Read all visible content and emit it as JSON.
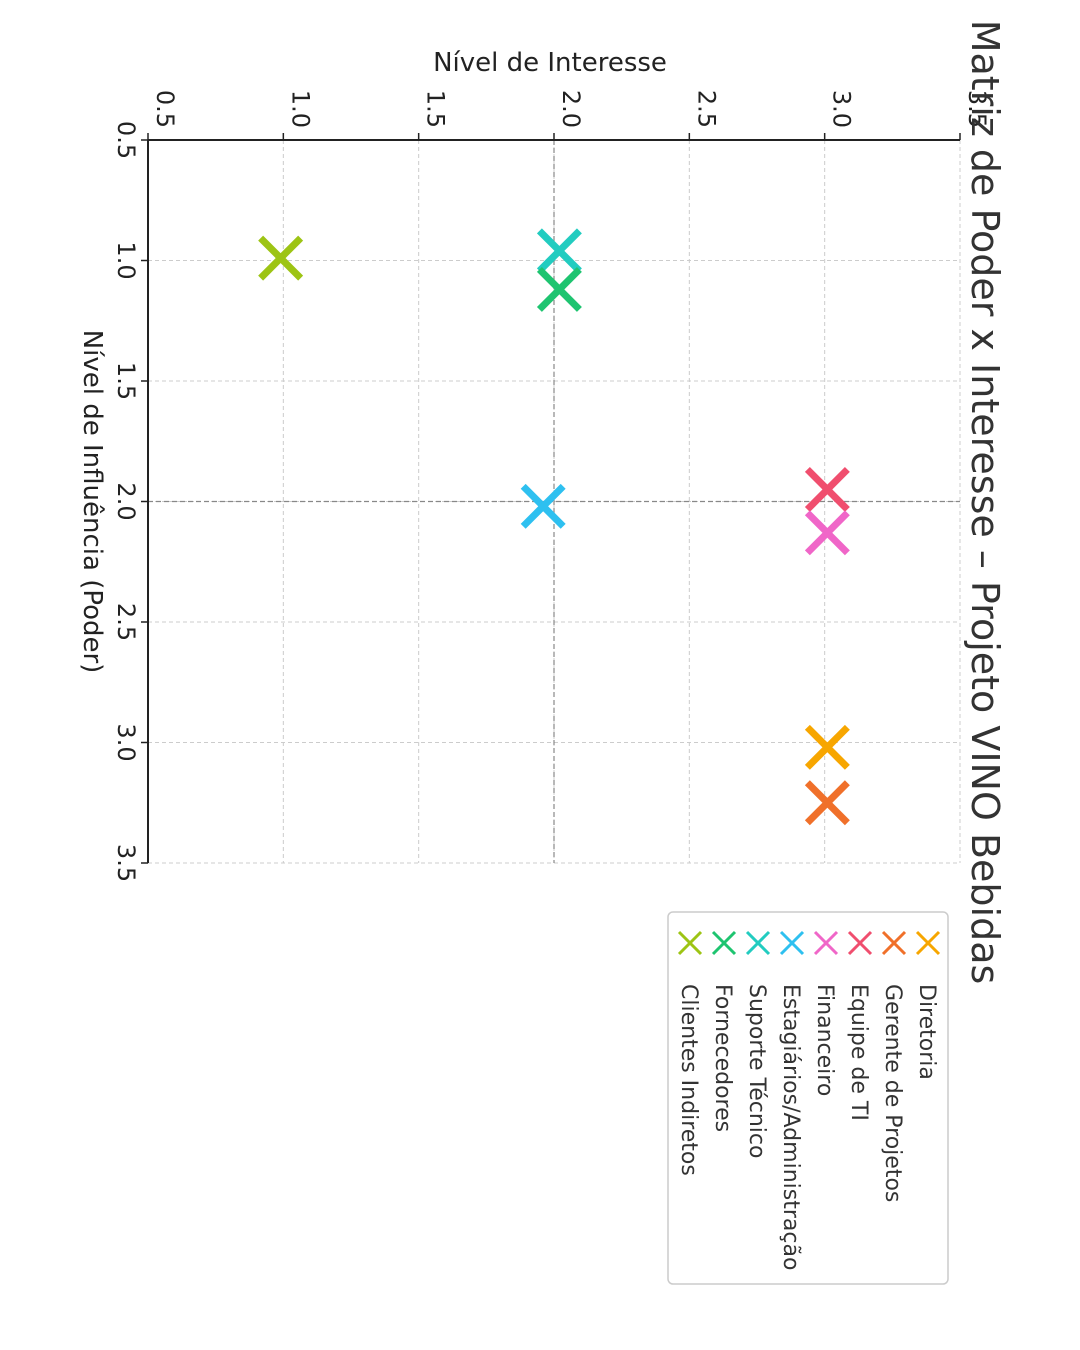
{
  "chart_data": {
    "type": "scatter",
    "orientation": "rotated 90 degrees clockwise",
    "title": "Matriz de Poder x Interesse – Projeto VINO Bebidas",
    "xlabel": "Nível de Influência (Poder)",
    "ylabel": "Nível de Interesse",
    "xlim": [
      0.5,
      3.5
    ],
    "ylim": [
      0.5,
      3.5
    ],
    "xticks": [
      "0.5",
      "1.0",
      "1.5",
      "2.0",
      "2.5",
      "3.0",
      "3.5"
    ],
    "yticks": [
      "0.5",
      "1.0",
      "1.5",
      "2.0",
      "2.5",
      "3.0",
      "3.5"
    ],
    "grid": true,
    "marker": "x",
    "legend_position": "right",
    "series": [
      {
        "name": "Diretoria",
        "color": "#f7a600",
        "x": 3.02,
        "y": 3.01
      },
      {
        "name": "Gerente de Projetos",
        "color": "#f0702a",
        "x": 3.25,
        "y": 3.01
      },
      {
        "name": "Equipe de TI",
        "color": "#f04e6e",
        "x": 1.95,
        "y": 3.01
      },
      {
        "name": "Financeiro",
        "color": "#f066c8",
        "x": 2.13,
        "y": 3.01
      },
      {
        "name": "Estagiários/Administração",
        "color": "#2ec0f0",
        "x": 2.02,
        "y": 1.96
      },
      {
        "name": "Suporte Técnico",
        "color": "#22ccc0",
        "x": 0.96,
        "y": 2.02
      },
      {
        "name": "Fornecedores",
        "color": "#1ec470",
        "x": 1.12,
        "y": 2.02
      },
      {
        "name": "Clientes Indiretos",
        "color": "#9dc414",
        "x": 0.99,
        "y": 0.99
      }
    ]
  }
}
